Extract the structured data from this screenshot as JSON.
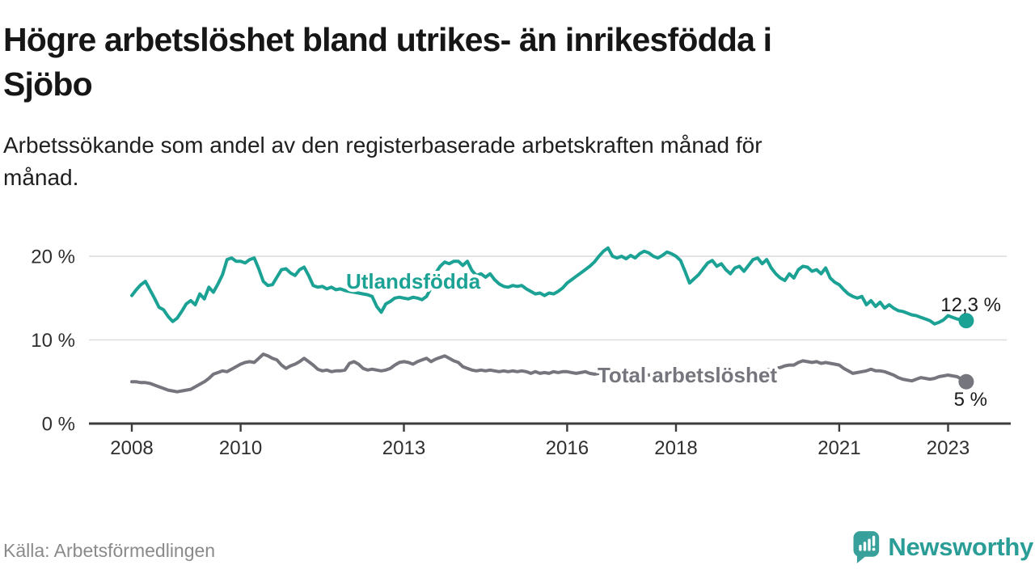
{
  "header": {
    "title": "Högre arbetslöshet bland utrikes- än inrikesfödda i\nSjöbo",
    "subtitle": "Arbetssökande som andel av den registerbaserade arbetskraften månad för\nmånad."
  },
  "footer": {
    "source": "Källa: Arbetsförmedlingen",
    "brand": "Newsworthy"
  },
  "colors": {
    "utlandsfodda": "#1ba294",
    "total": "#75757d",
    "grid": "#dcdcdc",
    "axis": "#3c3c3c",
    "logo_teal": "#38a09a"
  },
  "chart_data": {
    "type": "line",
    "title": "Högre arbetslöshet bland utrikes- än inrikesfödda i Sjöbo",
    "x_unit": "month",
    "x_start": "2008-01",
    "x_end": "2023-05",
    "x_ticks": [
      2008,
      2010,
      2013,
      2016,
      2018,
      2021,
      2023
    ],
    "y_ticks": [
      {
        "value": 0,
        "label": "0 %"
      },
      {
        "value": 10,
        "label": "10 %"
      },
      {
        "value": 20,
        "label": "20 %"
      }
    ],
    "ylim": [
      0,
      22
    ],
    "grid": "horizontal",
    "legend": "inline-labels",
    "series": [
      {
        "name": "Utlandsfödda",
        "color": "#1ba294",
        "end_label": "12,3 %",
        "end_value": 12.3,
        "values": [
          15.3,
          16.0,
          16.6,
          17.0,
          16.0,
          15.0,
          13.9,
          13.6,
          12.8,
          12.2,
          12.6,
          13.4,
          14.3,
          14.7,
          14.2,
          15.5,
          14.9,
          16.3,
          15.7,
          16.7,
          17.8,
          19.6,
          19.8,
          19.4,
          19.4,
          19.2,
          19.6,
          19.8,
          18.5,
          17.0,
          16.5,
          16.6,
          17.5,
          18.4,
          18.5,
          18.0,
          17.7,
          18.4,
          18.7,
          17.7,
          16.5,
          16.3,
          16.4,
          16.1,
          16.3,
          16.0,
          16.1,
          15.9,
          15.8,
          15.7,
          15.6,
          15.5,
          15.4,
          15.2,
          14.0,
          13.3,
          14.3,
          14.6,
          15.0,
          15.1,
          15.0,
          14.9,
          15.1,
          15.0,
          14.8,
          15.2,
          16.2,
          18.0,
          18.8,
          19.3,
          19.1,
          19.4,
          19.4,
          18.9,
          19.4,
          18.3,
          17.7,
          17.9,
          17.5,
          17.9,
          17.2,
          16.7,
          16.4,
          16.3,
          16.5,
          16.4,
          16.5,
          16.1,
          15.8,
          15.5,
          15.6,
          15.3,
          15.6,
          15.5,
          15.8,
          16.2,
          16.8,
          17.2,
          17.6,
          18.0,
          18.4,
          18.8,
          19.3,
          20.0,
          20.6,
          21.0,
          20.0,
          19.8,
          20.0,
          19.7,
          20.1,
          19.8,
          20.3,
          20.6,
          20.4,
          20.0,
          19.8,
          20.1,
          20.5,
          20.3,
          20.0,
          19.5,
          18.2,
          16.8,
          17.3,
          17.8,
          18.5,
          19.2,
          19.5,
          18.8,
          19.1,
          18.4,
          17.9,
          18.6,
          18.8,
          18.2,
          18.9,
          19.6,
          19.8,
          19.1,
          19.6,
          18.6,
          17.9,
          17.4,
          17.1,
          17.9,
          17.4,
          18.4,
          18.8,
          18.7,
          18.2,
          18.4,
          17.9,
          18.6,
          17.4,
          16.9,
          16.6,
          16.0,
          15.5,
          15.2,
          15.0,
          15.2,
          14.2,
          14.7,
          14.0,
          14.5,
          13.8,
          14.2,
          13.8,
          13.5,
          13.4,
          13.2,
          13.0,
          12.9,
          12.7,
          12.5,
          12.3,
          11.9,
          12.1,
          12.4,
          12.9,
          12.7,
          12.5,
          12.4,
          12.3
        ]
      },
      {
        "name": "Total arbetslöshet",
        "color": "#75757d",
        "end_label": "5 %",
        "end_value": 5.0,
        "values": [
          5.0,
          5.0,
          4.9,
          4.9,
          4.8,
          4.6,
          4.4,
          4.2,
          4.0,
          3.9,
          3.8,
          3.9,
          4.0,
          4.1,
          4.4,
          4.7,
          5.0,
          5.4,
          5.9,
          6.1,
          6.3,
          6.2,
          6.5,
          6.8,
          7.1,
          7.3,
          7.4,
          7.3,
          7.8,
          8.3,
          8.1,
          7.8,
          7.6,
          7.0,
          6.6,
          6.9,
          7.1,
          7.4,
          7.8,
          7.4,
          7.0,
          6.5,
          6.3,
          6.4,
          6.2,
          6.3,
          6.3,
          6.4,
          7.2,
          7.4,
          7.1,
          6.6,
          6.4,
          6.5,
          6.4,
          6.3,
          6.4,
          6.6,
          7.0,
          7.3,
          7.4,
          7.3,
          7.1,
          7.4,
          7.6,
          7.8,
          7.4,
          7.7,
          7.9,
          8.1,
          7.8,
          7.5,
          7.3,
          6.8,
          6.6,
          6.4,
          6.3,
          6.4,
          6.3,
          6.4,
          6.3,
          6.2,
          6.3,
          6.2,
          6.3,
          6.2,
          6.3,
          6.2,
          6.0,
          6.2,
          6.0,
          6.1,
          6.0,
          6.2,
          6.1,
          6.2,
          6.2,
          6.1,
          6.0,
          6.1,
          6.2,
          6.0,
          5.9,
          6.0,
          6.1,
          6.0,
          5.9,
          6.0,
          6.0,
          5.9,
          5.8,
          5.9,
          6.0,
          5.9,
          5.8,
          5.9,
          6.0,
          5.9,
          5.8,
          5.9,
          5.8,
          5.7,
          5.8,
          5.7,
          5.6,
          5.7,
          5.8,
          5.7,
          5.6,
          5.7,
          5.8,
          5.9,
          6.0,
          6.1,
          6.0,
          6.1,
          6.2,
          6.1,
          6.2,
          6.3,
          6.4,
          6.5,
          6.6,
          6.7,
          6.9,
          7.0,
          7.0,
          7.3,
          7.5,
          7.4,
          7.3,
          7.4,
          7.2,
          7.3,
          7.2,
          7.1,
          7.0,
          6.6,
          6.3,
          6.0,
          6.1,
          6.2,
          6.3,
          6.5,
          6.3,
          6.3,
          6.2,
          6.0,
          5.8,
          5.5,
          5.3,
          5.2,
          5.1,
          5.3,
          5.5,
          5.4,
          5.3,
          5.4,
          5.6,
          5.7,
          5.8,
          5.7,
          5.6,
          5.3,
          5.0
        ]
      }
    ]
  }
}
